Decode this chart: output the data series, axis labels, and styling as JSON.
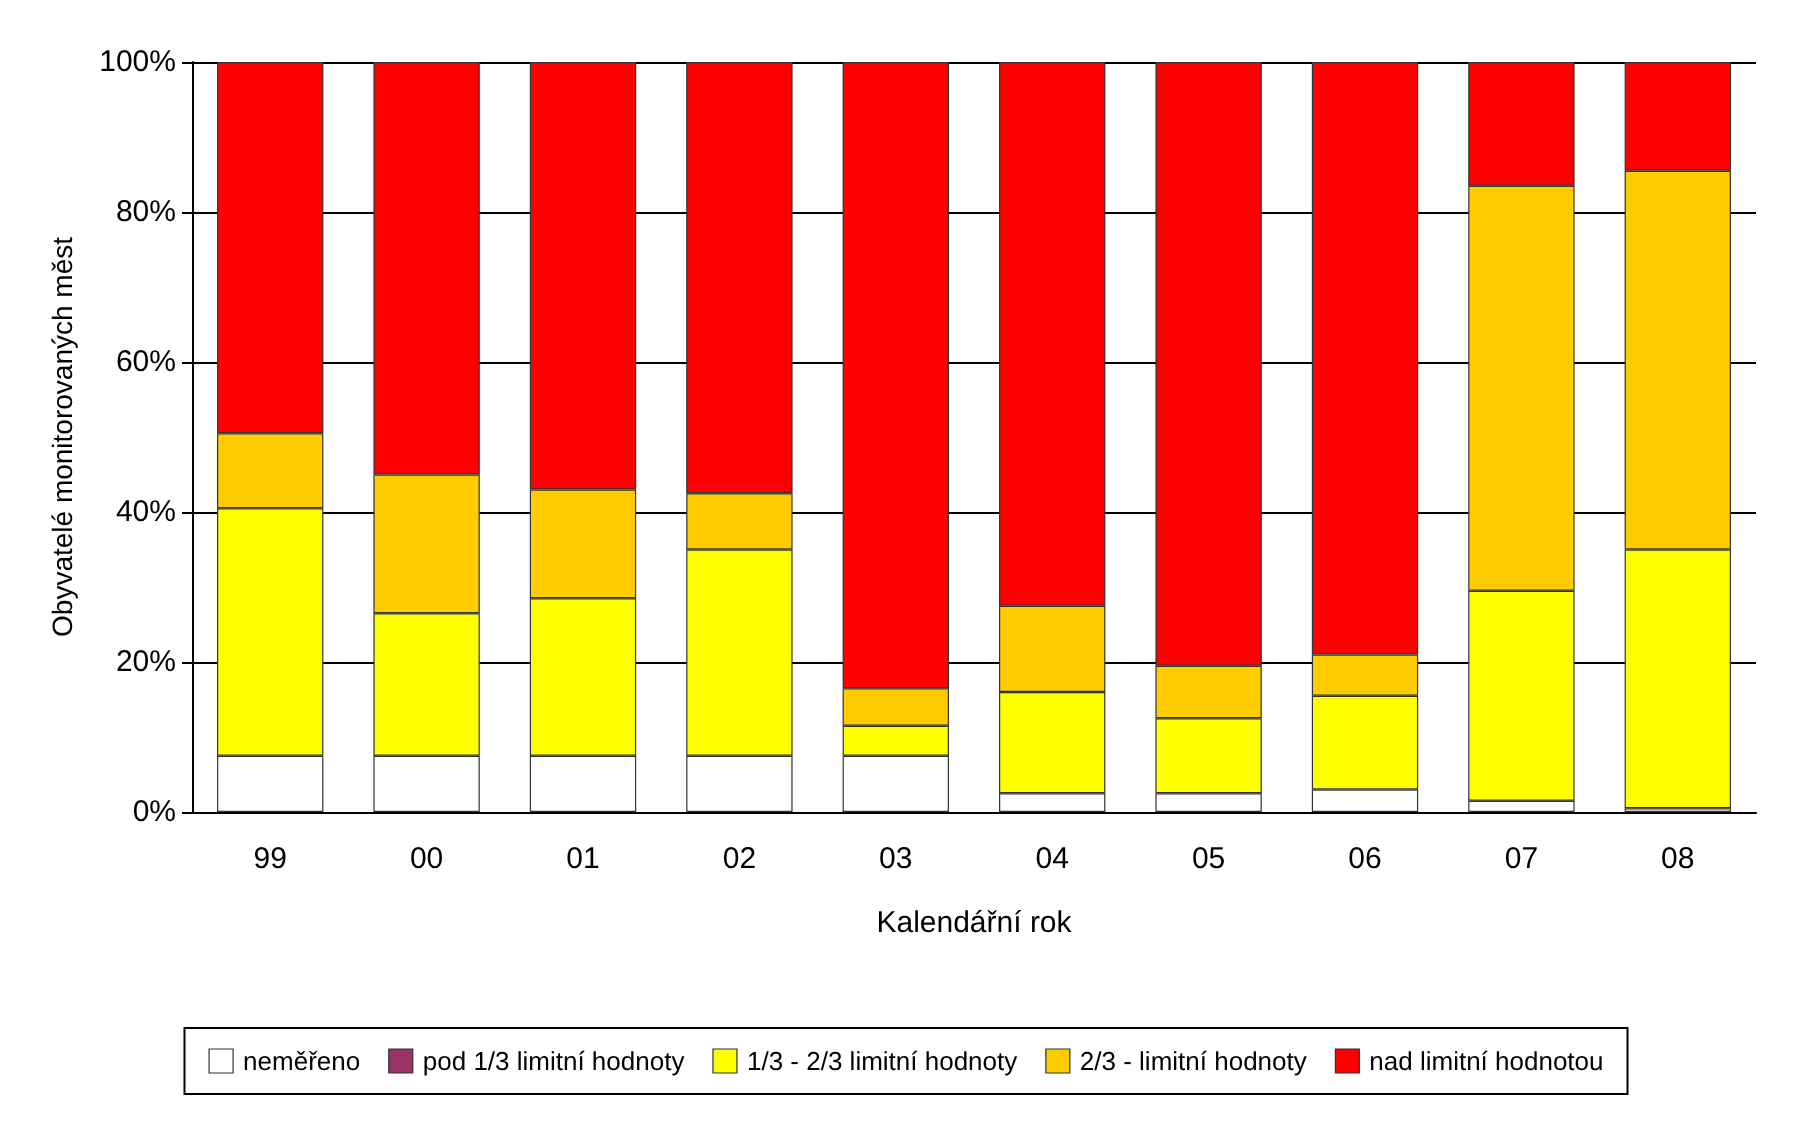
{
  "chart_data": {
    "type": "bar",
    "stacked": true,
    "xlabel": "Kalendářní rok",
    "ylabel": "Obyvatelé monitorovaných měst",
    "categories": [
      "99",
      "00",
      "01",
      "02",
      "03",
      "04",
      "05",
      "06",
      "07",
      "08"
    ],
    "series": [
      {
        "name": "neměřeno",
        "color": "#ffffff",
        "values": [
          7.5,
          7.5,
          7.5,
          7.5,
          7.5,
          2.5,
          2.5,
          3,
          1.5,
          0.5
        ]
      },
      {
        "name": "pod 1/3 limitní hodnoty",
        "color": "#993366",
        "values": [
          0,
          0,
          0,
          0,
          0,
          0,
          0,
          0,
          0,
          0
        ]
      },
      {
        "name": "1/3 - 2/3 limitní hodnoty",
        "color": "#ffff00",
        "values": [
          33,
          19,
          21,
          27.5,
          4,
          13.5,
          10,
          12.5,
          28,
          34.5
        ]
      },
      {
        "name": "2/3 - limitní hodnoty",
        "color": "#ffcc00",
        "values": [
          10,
          18.5,
          14.5,
          7.5,
          5,
          11.5,
          7,
          5.5,
          54,
          50.5
        ]
      },
      {
        "name": "nad limitní hodnotou",
        "color": "#ff0000",
        "values": [
          49.5,
          55,
          57,
          57.5,
          83.5,
          72.5,
          80.5,
          79,
          16.5,
          14.5
        ]
      }
    ],
    "ylim": [
      0,
      100
    ],
    "yticks": [
      {
        "value": 0,
        "label": "0%"
      },
      {
        "value": 20,
        "label": "20%"
      },
      {
        "value": 40,
        "label": "40%"
      },
      {
        "value": 60,
        "label": "60%"
      },
      {
        "value": 80,
        "label": "80%"
      },
      {
        "value": 100,
        "label": "100%"
      }
    ],
    "grid": "y",
    "legend": "bottom"
  }
}
